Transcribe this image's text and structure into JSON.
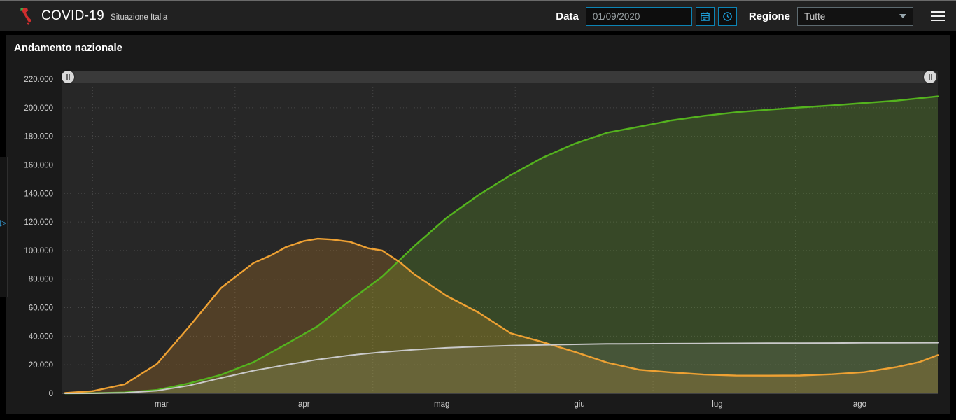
{
  "header": {
    "title": "COVID-19",
    "subtitle": "Situazione Italia",
    "date_label": "Data",
    "date_value": "01/09/2020",
    "region_label": "Regione",
    "region_value": "Tutte"
  },
  "icons": {
    "logo": "italy-map-icon",
    "calendar": "calendar-icon",
    "clock": "clock-icon",
    "region_chevron": "chevron-down-icon",
    "menu": "hamburger-menu-icon",
    "expand_left_panel": "expand-right-icon",
    "slider_handles": "drag-handle-icon"
  },
  "panel": {
    "title": "Andamento nazionale"
  },
  "colors": {
    "accent_blue": "#1d9ed9",
    "control_border_blue": "#0c84b5",
    "header_bg": "#212121",
    "panel_bg": "#1a1a1a",
    "page_bg": "#000000"
  },
  "chart_data": {
    "type": "area",
    "title": "Andamento nazionale",
    "xlabel": "",
    "ylabel": "",
    "x_axis_note": "day index, 0 = first plotted day (late Feb 2020) through 190 = 01/09/2020",
    "x_range": [
      0,
      190
    ],
    "ylim": [
      0,
      220000
    ],
    "grid": true,
    "legend": "none",
    "colors": {
      "plot_bg": "#272727",
      "grid": "#474747",
      "axis_text": "#cfcfcf",
      "axis_line": "#6b6b6b"
    },
    "y_ticks": [
      {
        "value": 0,
        "label": "0"
      },
      {
        "value": 20000,
        "label": "20.000"
      },
      {
        "value": 40000,
        "label": "40.000"
      },
      {
        "value": 60000,
        "label": "60.000"
      },
      {
        "value": 80000,
        "label": "80.000"
      },
      {
        "value": 100000,
        "label": "100.000"
      },
      {
        "value": 120000,
        "label": "120.000"
      },
      {
        "value": 140000,
        "label": "140.000"
      },
      {
        "value": 160000,
        "label": "160.000"
      },
      {
        "value": 180000,
        "label": "180.000"
      },
      {
        "value": 200000,
        "label": "200.000"
      },
      {
        "value": 220000,
        "label": "220.000"
      }
    ],
    "x_month_labels": [
      {
        "label": "mar",
        "day": 21
      },
      {
        "label": "apr",
        "day": 52
      },
      {
        "label": "mag",
        "day": 82
      },
      {
        "label": "giu",
        "day": 112
      },
      {
        "label": "lug",
        "day": 142
      },
      {
        "label": "ago",
        "day": 173
      }
    ],
    "x_gridline_days": [
      6,
      37,
      67,
      98,
      128,
      159
    ],
    "series": [
      {
        "name": "green",
        "color": "#54b31e",
        "fill": "rgba(104,170,40,0.25)",
        "width": 2.4,
        "points": [
          [
            0,
            1
          ],
          [
            6,
            83
          ],
          [
            13,
            622
          ],
          [
            20,
            2335
          ],
          [
            27,
            7024
          ],
          [
            34,
            13030
          ],
          [
            41,
            21815
          ],
          [
            48,
            34211
          ],
          [
            55,
            47055
          ],
          [
            62,
            64928
          ],
          [
            69,
            81654
          ],
          [
            76,
            103031
          ],
          [
            83,
            122810
          ],
          [
            90,
            138840
          ],
          [
            97,
            152844
          ],
          [
            104,
            165078
          ],
          [
            111,
            174865
          ],
          [
            118,
            182453
          ],
          [
            125,
            186725
          ],
          [
            132,
            191083
          ],
          [
            139,
            194273
          ],
          [
            146,
            196806
          ],
          [
            153,
            198593
          ],
          [
            160,
            200229
          ],
          [
            167,
            201642
          ],
          [
            174,
            203326
          ],
          [
            181,
            204960
          ],
          [
            190,
            207944
          ]
        ]
      },
      {
        "name": "orange",
        "color": "#eea133",
        "fill": "rgba(233,150,40,0.22)",
        "width": 2.4,
        "points": [
          [
            0,
            221
          ],
          [
            6,
            1577
          ],
          [
            13,
            6387
          ],
          [
            20,
            20603
          ],
          [
            27,
            46638
          ],
          [
            34,
            73880
          ],
          [
            41,
            91246
          ],
          [
            45,
            96877
          ],
          [
            48,
            102253
          ],
          [
            52,
            106607
          ],
          [
            55,
            108257
          ],
          [
            58,
            107709
          ],
          [
            62,
            106103
          ],
          [
            66,
            101551
          ],
          [
            69,
            99980
          ],
          [
            73,
            91528
          ],
          [
            76,
            83324
          ],
          [
            83,
            68351
          ],
          [
            90,
            56594
          ],
          [
            97,
            42075
          ],
          [
            104,
            35877
          ],
          [
            111,
            28997
          ],
          [
            118,
            21543
          ],
          [
            125,
            16496
          ],
          [
            132,
            14642
          ],
          [
            139,
            13157
          ],
          [
            146,
            12440
          ],
          [
            153,
            12404
          ],
          [
            160,
            12474
          ],
          [
            167,
            13368
          ],
          [
            174,
            14867
          ],
          [
            181,
            18438
          ],
          [
            186,
            21932
          ],
          [
            190,
            26754
          ]
        ]
      },
      {
        "name": "gray",
        "color": "#c9c9c9",
        "fill": "rgba(210,210,210,0.10)",
        "width": 2,
        "points": [
          [
            0,
            7
          ],
          [
            6,
            34
          ],
          [
            13,
            366
          ],
          [
            20,
            1809
          ],
          [
            27,
            5476
          ],
          [
            34,
            10779
          ],
          [
            41,
            15887
          ],
          [
            48,
            19899
          ],
          [
            55,
            23660
          ],
          [
            62,
            26644
          ],
          [
            69,
            28884
          ],
          [
            76,
            30560
          ],
          [
            83,
            31908
          ],
          [
            90,
            32785
          ],
          [
            97,
            33415
          ],
          [
            104,
            33899
          ],
          [
            111,
            34301
          ],
          [
            118,
            34634
          ],
          [
            125,
            34738
          ],
          [
            132,
            34861
          ],
          [
            139,
            34954
          ],
          [
            146,
            35042
          ],
          [
            153,
            35107
          ],
          [
            160,
            35166
          ],
          [
            167,
            35209
          ],
          [
            174,
            35392
          ],
          [
            181,
            35430
          ],
          [
            190,
            35491
          ]
        ]
      }
    ]
  }
}
